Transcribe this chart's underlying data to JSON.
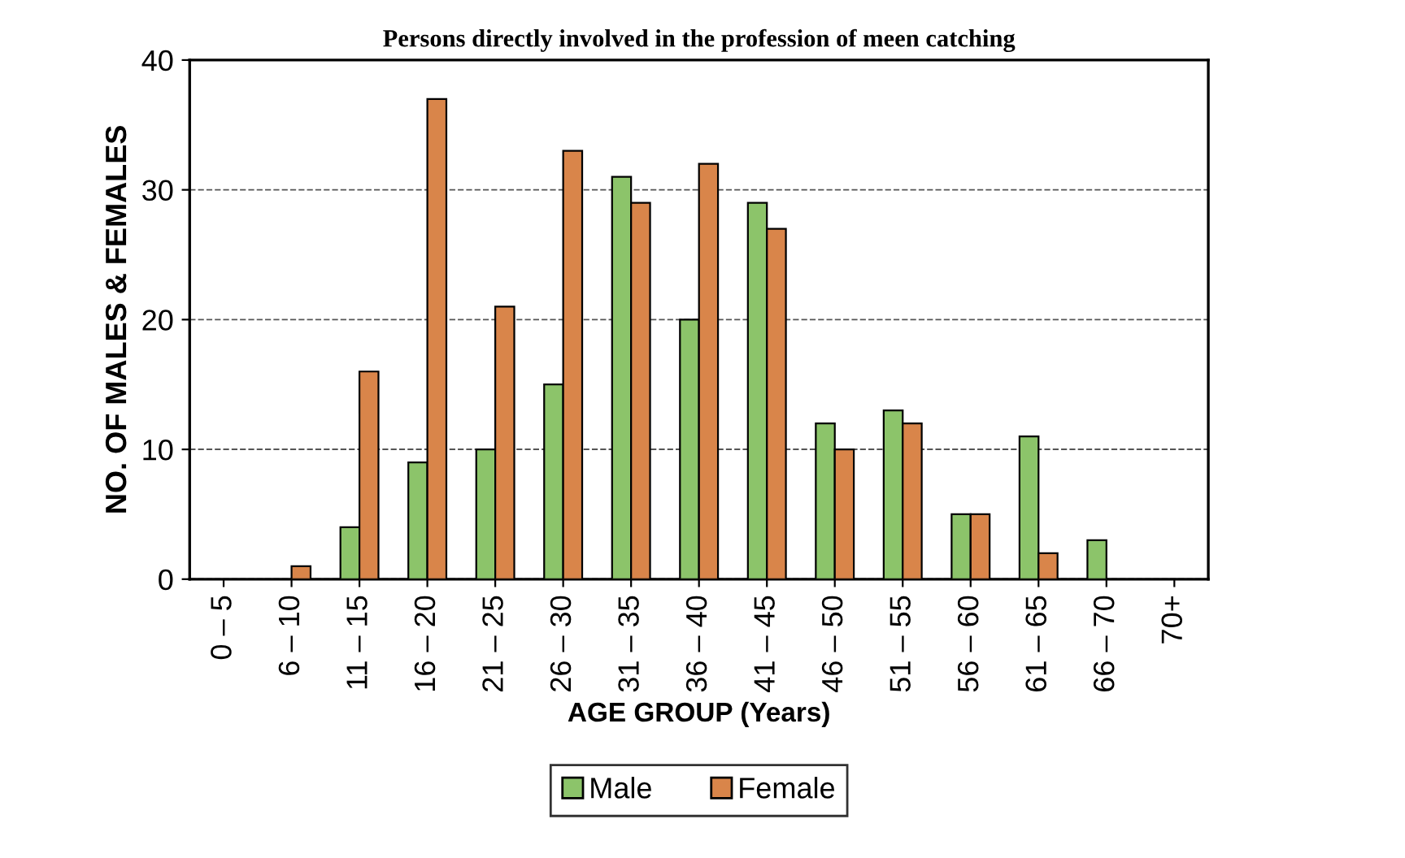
{
  "chart_data": {
    "type": "bar",
    "title": "Persons directly involved in the profession of meen catching",
    "xlabel": "AGE GROUP (Years)",
    "ylabel": "NO. OF MALES & FEMALES",
    "categories": [
      "0 – 5",
      "6 – 10",
      "11 – 15",
      "16 – 20",
      "21 – 25",
      "26 – 30",
      "31 – 35",
      "36 – 40",
      "41 – 45",
      "46 – 50",
      "51 – 55",
      "56 – 60",
      "61 – 65",
      "66 – 70",
      "70+"
    ],
    "series": [
      {
        "name": "Male",
        "color": "#8cc46a",
        "values": [
          0,
          0,
          4,
          9,
          10,
          15,
          31,
          20,
          29,
          12,
          13,
          5,
          11,
          3,
          0
        ]
      },
      {
        "name": "Female",
        "color": "#d9854a",
        "values": [
          0,
          1,
          16,
          37,
          21,
          33,
          29,
          32,
          27,
          10,
          12,
          5,
          2,
          0,
          0
        ]
      }
    ],
    "ylim": [
      0,
      40
    ],
    "yticks": [
      0,
      10,
      20,
      30,
      40
    ],
    "grid": "y",
    "legend": "bottom"
  }
}
